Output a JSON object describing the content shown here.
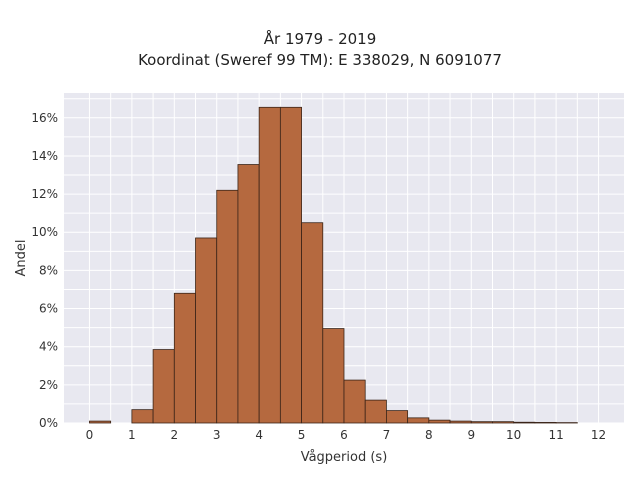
{
  "chart_data": {
    "type": "bar",
    "title_lines": [
      "År 1979 - 2019",
      "Koordinat (Sweref 99 TM): E 338029, N 6091077"
    ],
    "xlabel": "Vågperiod (s)",
    "ylabel": "Andel",
    "bin_width": 0.5,
    "bin_starts": [
      0,
      0.5,
      1,
      1.5,
      2,
      2.5,
      3,
      3.5,
      4,
      4.5,
      5,
      5.5,
      6,
      6.5,
      7,
      7.5,
      8,
      8.5,
      9,
      9.5,
      10,
      10.5,
      11,
      11.5
    ],
    "values": [
      0.1,
      0.0,
      0.7,
      3.85,
      6.8,
      9.7,
      12.2,
      13.55,
      16.55,
      16.55,
      10.5,
      4.95,
      2.25,
      1.2,
      0.65,
      0.27,
      0.15,
      0.1,
      0.07,
      0.07,
      0.04,
      0.03,
      0.02,
      0.0
    ],
    "xlim": [
      -0.6,
      12.6
    ],
    "ylim": [
      0,
      17.3
    ],
    "x_ticks": [
      "0",
      "1",
      "2",
      "3",
      "4",
      "5",
      "6",
      "7",
      "8",
      "9",
      "10",
      "11",
      "12"
    ],
    "y_ticks": [
      0,
      2,
      4,
      6,
      8,
      10,
      12,
      14,
      16
    ],
    "y_tick_labels": [
      "0%",
      "2%",
      "4%",
      "6%",
      "8%",
      "10%",
      "12%",
      "14%",
      "16%"
    ],
    "grid": true,
    "bar_color": "#b5693f",
    "bar_edge_color": "#3a2418",
    "plot_background": "#e8e8f0"
  }
}
